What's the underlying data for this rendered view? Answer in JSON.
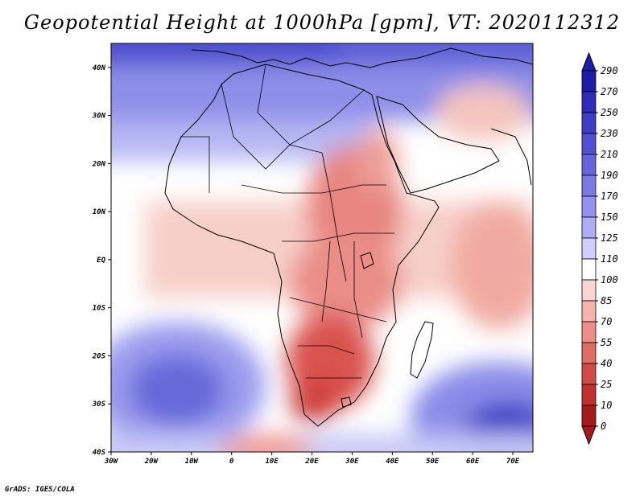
{
  "title": "Geopotential Height at 1000hPa [gpm], VT: 2020112312",
  "credit": "GrADS: IGES/COLA",
  "map": {
    "lon_range": [
      -30,
      75
    ],
    "lat_range": [
      -40,
      45
    ],
    "lon_ticks": [
      "30W",
      "20W",
      "10W",
      "0",
      "10E",
      "20E",
      "30E",
      "40E",
      "50E",
      "60E",
      "70E"
    ],
    "lat_ticks": [
      "40N",
      "30N",
      "20N",
      "10N",
      "EQ",
      "10S",
      "20S",
      "30S",
      "40S"
    ]
  },
  "colorbar": {
    "labels": [
      "290",
      "270",
      "250",
      "230",
      "210",
      "190",
      "170",
      "150",
      "125",
      "110",
      "100",
      "85",
      "70",
      "55",
      "40",
      "25",
      "10",
      "0"
    ],
    "colors": [
      "#1c1ca4",
      "#2c2cb8",
      "#3d3dc6",
      "#5050d2",
      "#6464dc",
      "#7a7ae6",
      "#9292ee",
      "#aeaef5",
      "#cdd0fa",
      "#ffffff",
      "#fbd5d2",
      "#f5b3ad",
      "#ec8f88",
      "#e06b65",
      "#d24a45",
      "#c0322e",
      "#a51b1b"
    ]
  }
}
